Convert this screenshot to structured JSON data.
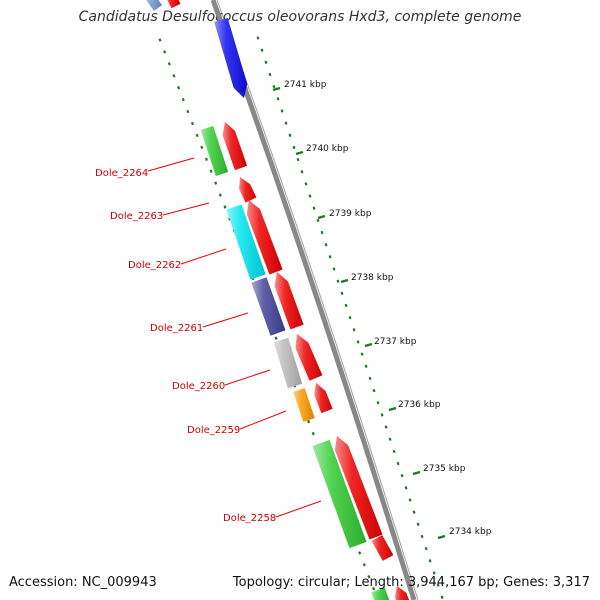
{
  "title": "Candidatus Desulfococcus oleovorans Hxd3, complete genome",
  "footer": {
    "accession": "Accession: NC_009943",
    "summary": "Topology: circular; Length: 3,944,167 bp; Genes: 3,317"
  },
  "scale_labels": [
    "2741 kbp",
    "2740 kbp",
    "2739 kbp",
    "2738 kbp",
    "2737 kbp",
    "2736 kbp",
    "2735 kbp",
    "2734 kbp"
  ],
  "gene_labels": [
    "Dole_2264",
    "Dole_2263",
    "Dole_2262",
    "Dole_2261",
    "Dole_2260",
    "Dole_2259",
    "Dole_2258"
  ],
  "colors": {
    "forward_strand": "#ee0000",
    "backbone": "#888888",
    "tick": "#227722",
    "gene_label": "#cc0000",
    "blue_gene": "#1111ee",
    "green_gene": "#33cc33",
    "cyan_gene": "#00e5f0",
    "slate_gene": "#444499",
    "grey_gene": "#bbbbbb",
    "orange_gene": "#ff9900"
  }
}
